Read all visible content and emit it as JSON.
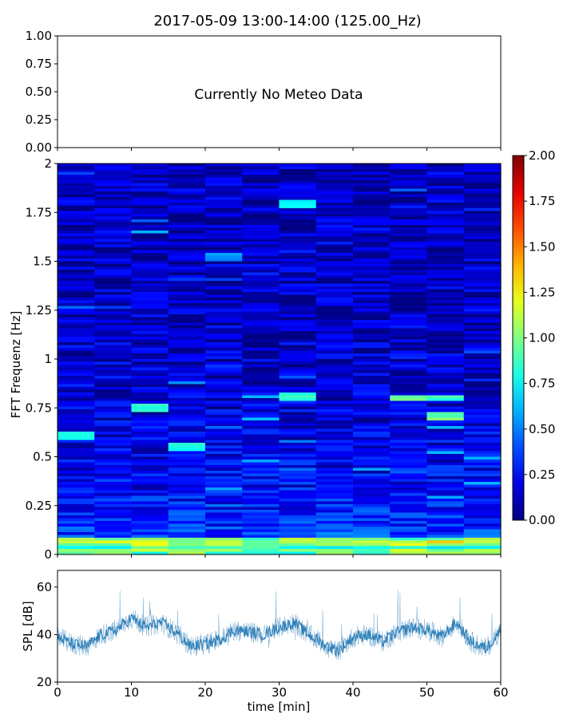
{
  "figure_title": "2017-05-09 13:00-14:00 (125.00_Hz)",
  "chart_data": [
    {
      "panel": "meteo",
      "type": "line",
      "title": "",
      "annotation": "Currently No Meteo Data",
      "xlim": [
        0,
        60
      ],
      "ylim": [
        0,
        1
      ],
      "y_ticks": [
        0,
        0.25,
        0.5,
        0.75,
        1.0
      ],
      "y_tick_labels": [
        "0.00",
        "0.25",
        "0.50",
        "0.75",
        "1.00"
      ],
      "x_ticks": [
        0,
        10,
        20,
        30,
        40,
        50,
        60
      ],
      "show_x_tick_labels": false,
      "series": []
    },
    {
      "panel": "spectrogram",
      "type": "heatmap",
      "colormap": "jet",
      "xlim": [
        0,
        60
      ],
      "ylim": [
        0,
        2
      ],
      "ylabel": "FFT Frequenz [Hz]",
      "y_ticks": [
        0,
        0.25,
        0.5,
        0.75,
        1,
        1.25,
        1.5,
        1.75,
        2
      ],
      "y_tick_labels": [
        "0",
        "0.25",
        "0.5",
        "0.75",
        "1",
        "1.25",
        "1.5",
        "1.75",
        "2"
      ],
      "x_ticks": [
        0,
        10,
        20,
        30,
        40,
        50,
        60
      ],
      "show_x_tick_labels": false,
      "clim": [
        0,
        2
      ],
      "colorbar_ticks": [
        0,
        0.25,
        0.5,
        0.75,
        1.0,
        1.25,
        1.5,
        1.75,
        2.0
      ],
      "colorbar_tick_labels": [
        "0.00",
        "0.25",
        "0.50",
        "0.75",
        "1.00",
        "1.25",
        "1.50",
        "1.75",
        "2.00"
      ],
      "hotspots": [
        {
          "x": 4,
          "y": 0.61,
          "v": 0.85
        },
        {
          "x": 14,
          "y": 0.75,
          "v": 0.9
        },
        {
          "x": 19,
          "y": 0.55,
          "v": 0.85
        },
        {
          "x": 32,
          "y": 0.81,
          "v": 0.9
        },
        {
          "x": 50,
          "y": 0.8,
          "v": 1.0
        },
        {
          "x": 53,
          "y": 0.71,
          "v": 1.1
        },
        {
          "x": 31,
          "y": 1.79,
          "v": 0.8
        },
        {
          "x": 24,
          "y": 1.52,
          "v": 0.6
        }
      ]
    },
    {
      "panel": "spl",
      "type": "line",
      "xlabel": "time [min]",
      "ylabel": "SPL [dB]",
      "xlim": [
        0,
        60
      ],
      "ylim": [
        20,
        67
      ],
      "x_ticks": [
        0,
        10,
        20,
        30,
        40,
        50,
        60
      ],
      "x_tick_labels": [
        "0",
        "10",
        "20",
        "30",
        "40",
        "50",
        "60"
      ],
      "y_ticks": [
        20,
        40,
        60
      ],
      "y_tick_labels": [
        "20",
        "40",
        "60"
      ],
      "line_color": "#1f77b4",
      "series": [
        {
          "x": [
            0,
            2,
            4,
            6,
            8,
            10,
            12,
            14,
            16,
            18,
            20,
            22,
            24,
            26,
            28,
            30,
            32,
            34,
            36,
            38,
            40,
            42,
            44,
            46,
            48,
            50,
            52,
            54,
            56,
            58,
            60
          ],
          "values": [
            39,
            36,
            35,
            40,
            42,
            47,
            43,
            45,
            41,
            35,
            36,
            38,
            42,
            41,
            40,
            43,
            45,
            40,
            36,
            33,
            39,
            40,
            37,
            41,
            43,
            42,
            39,
            45,
            37,
            34,
            42
          ]
        }
      ]
    }
  ]
}
